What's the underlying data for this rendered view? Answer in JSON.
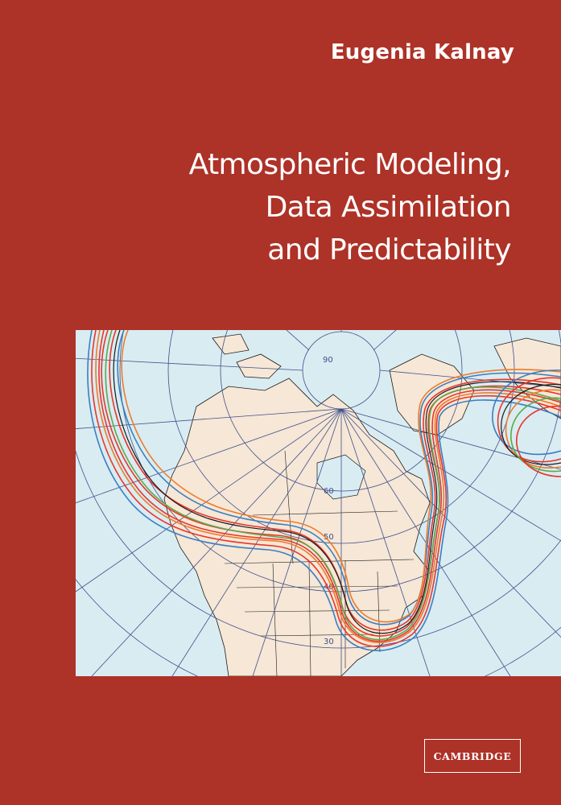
{
  "author": "Eugenia Kalnay",
  "title_lines": [
    "Atmospheric Modeling,",
    "Data Assimilation",
    "and Predictability"
  ],
  "map": {
    "latitude_labels": [
      "90",
      "60",
      "50",
      "40",
      "30"
    ],
    "colors": {
      "background": "#ad3227",
      "ocean": "#d9ecf1",
      "land": "#f6e7d6",
      "grid": "#3f4f8c",
      "coast": "#1a1a1a",
      "ensemble_red": "#e8352c",
      "ensemble_orange": "#ef7a2a",
      "ensemble_blue": "#3a7fc1",
      "ensemble_green": "#5ea84a",
      "ensemble_black": "#1a1a1a"
    }
  },
  "publisher": "CAMBRIDGE"
}
